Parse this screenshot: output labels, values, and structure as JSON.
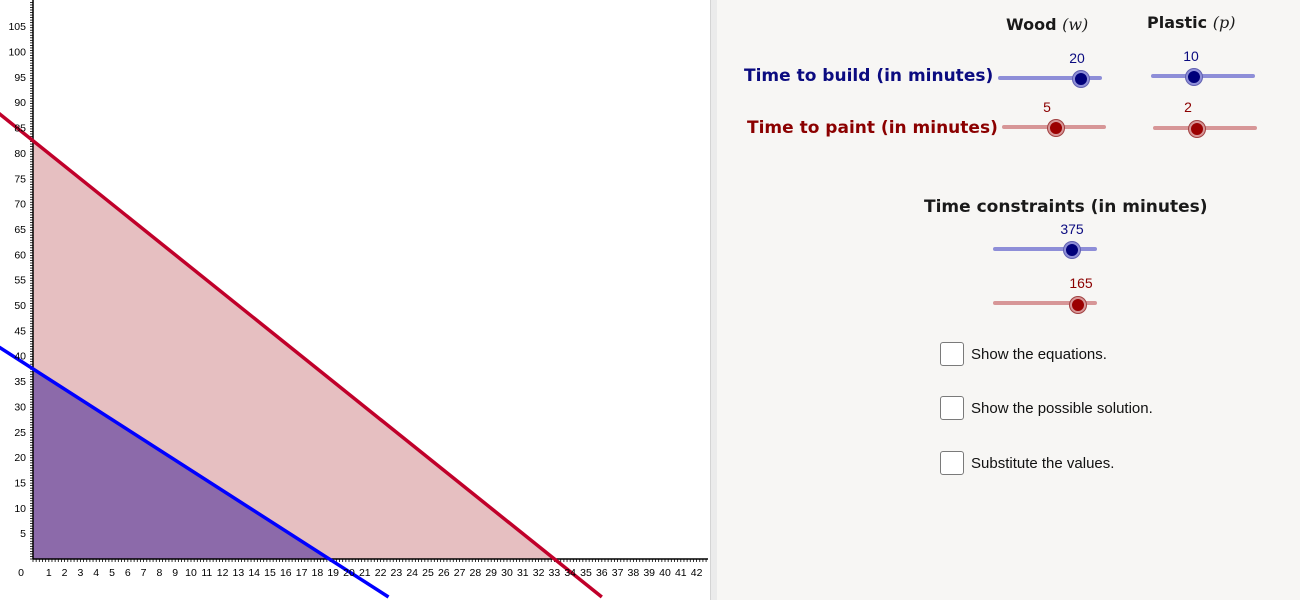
{
  "graph": {
    "x_ticks": [
      "1",
      "2",
      "3",
      "4",
      "5",
      "6",
      "7",
      "8",
      "9",
      "10",
      "11",
      "12",
      "13",
      "14",
      "15",
      "16",
      "17",
      "18",
      "19",
      "20",
      "21",
      "22",
      "23",
      "24",
      "25",
      "26",
      "27",
      "28",
      "29",
      "30",
      "31",
      "32",
      "33",
      "34",
      "35",
      "36",
      "37",
      "38",
      "39",
      "40",
      "41",
      "42"
    ],
    "y_ticks": [
      "5",
      "10",
      "15",
      "20",
      "25",
      "30",
      "35",
      "40",
      "45",
      "50",
      "55",
      "60",
      "65",
      "70",
      "75",
      "80",
      "85",
      "90",
      "95",
      "100",
      "105"
    ],
    "origin_label": "0",
    "build_line": {
      "color": "#0000ff",
      "build_total": 375,
      "wood_coef": 20,
      "plastic_coef": 10
    },
    "paint_line": {
      "color": "#c0002a",
      "paint_total": 165,
      "wood_coef": 5,
      "plastic_coef": 2
    },
    "build_region_color": "#7b5aa6",
    "paint_region_color": "#e6bfc1"
  },
  "panel": {
    "wood_label": "Wood",
    "wood_var": "(w)",
    "plastic_label": "Plastic",
    "plastic_var": "(p)",
    "build_label": "Time to build (in minutes)",
    "paint_label": "Time to paint (in minutes)",
    "constraints_label": "Time constraints (in minutes)",
    "sliders": {
      "wood_build": "20",
      "plastic_build": "10",
      "wood_paint": "5",
      "plastic_paint": "2",
      "build_constraint": "375",
      "paint_constraint": "165"
    },
    "checkboxes": {
      "equations": "Show the equations.",
      "solution": "Show the possible solution.",
      "substitute": "Substitute the values."
    }
  }
}
